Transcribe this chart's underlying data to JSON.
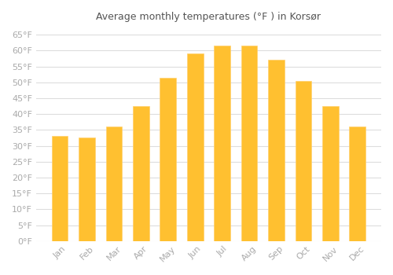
{
  "title": "Average monthly temperatures (°F ) in Korsør",
  "months": [
    "Jan",
    "Feb",
    "Mar",
    "Apr",
    "May",
    "Jun",
    "Jul",
    "Aug",
    "Sep",
    "Oct",
    "Nov",
    "Dec"
  ],
  "values": [
    33,
    32.5,
    36,
    42.5,
    51.5,
    59,
    61.5,
    61.5,
    57,
    50.5,
    42.5,
    36
  ],
  "bar_color_main": "#FFC030",
  "bar_color_edge": "#FFD070",
  "background_color": "#FFFFFF",
  "grid_color": "#DDDDDD",
  "tick_label_color": "#AAAAAA",
  "title_color": "#555555",
  "ylim": [
    0,
    67
  ],
  "yticks": [
    0,
    5,
    10,
    15,
    20,
    25,
    30,
    35,
    40,
    45,
    50,
    55,
    60,
    65
  ],
  "ytick_labels": [
    "0°F",
    "5°F",
    "10°F",
    "15°F",
    "20°F",
    "25°F",
    "30°F",
    "35°F",
    "40°F",
    "45°F",
    "50°F",
    "55°F",
    "60°F",
    "65°F"
  ]
}
